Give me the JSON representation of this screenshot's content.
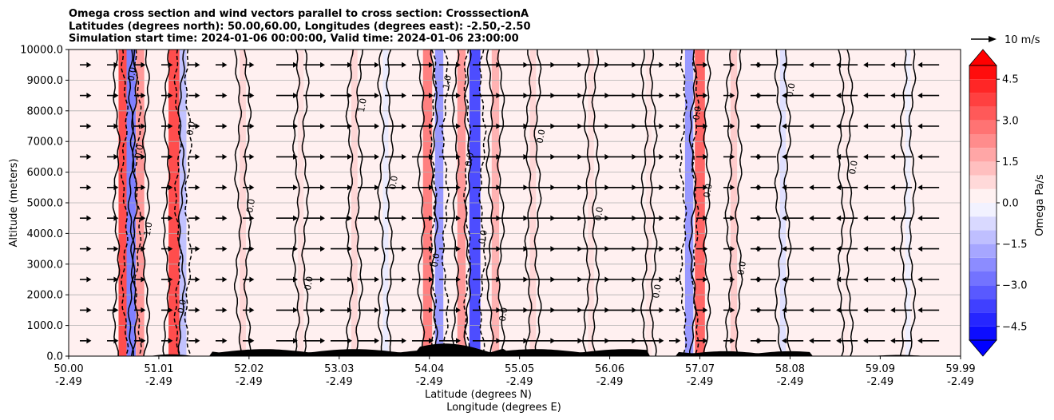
{
  "chart_data": {
    "type": "heatmap",
    "title_lines": [
      "Omega cross section and wind vectors parallel to cross section: CrosssectionA",
      "Latitudes (degrees north): 50.00,60.00, Longitudes (degrees east): -2.50,-2.50",
      "Simulation start time: 2024-01-06 00:00:00, Valid time: 2024-01-06 23:00:00"
    ],
    "ylabel": "Altitude (meters)",
    "xlabel_lines": [
      "Latitude (degrees N)",
      "Longitude (degrees E)"
    ],
    "y_ticks": [
      "0.0",
      "1000.0",
      "2000.0",
      "3000.0",
      "4000.0",
      "5000.0",
      "6000.0",
      "7000.0",
      "8000.0",
      "9000.0",
      "10000.0"
    ],
    "y_range": [
      0,
      10000
    ],
    "x_range": [
      50.0,
      59.99
    ],
    "x_tick_lat": [
      "50.00",
      "51.01",
      "52.02",
      "53.03",
      "54.04",
      "55.05",
      "56.06",
      "57.07",
      "58.08",
      "59.09",
      "59.99"
    ],
    "x_tick_lon": [
      "-2.49",
      "-2.49",
      "-2.49",
      "-2.49",
      "-2.49",
      "-2.49",
      "-2.49",
      "-2.49",
      "-2.49",
      "-2.49",
      "-2.49"
    ],
    "x_tick_values": [
      50.0,
      51.01,
      52.02,
      53.03,
      54.04,
      55.05,
      56.06,
      57.07,
      58.08,
      59.09,
      59.99
    ],
    "colorbar": {
      "label": "Omega Pa/s",
      "ticks": [
        "4.5",
        "3.0",
        "1.5",
        "0.0",
        "−1.5",
        "−3.0",
        "−4.5"
      ],
      "tick_values": [
        4.5,
        3.0,
        1.5,
        0.0,
        -1.5,
        -3.0,
        -4.5
      ],
      "range": [
        -5.0,
        5.0
      ],
      "levels": 20,
      "extend": "both",
      "cmap": "bwr"
    },
    "quiver_key": {
      "label": "10 m/s",
      "speed": 10
    },
    "vertical_bands": [
      {
        "lat": 50.62,
        "omega": 3.5
      },
      {
        "lat": 50.7,
        "omega": -2.5
      },
      {
        "lat": 50.8,
        "omega": 2.0
      },
      {
        "lat": 51.18,
        "omega": 3.5
      },
      {
        "lat": 51.28,
        "omega": -1.2
      },
      {
        "lat": 51.95,
        "omega": 0.8
      },
      {
        "lat": 52.6,
        "omega": 0.6
      },
      {
        "lat": 53.2,
        "omega": 0.8
      },
      {
        "lat": 53.55,
        "omega": -0.4
      },
      {
        "lat": 54.02,
        "omega": 2.5
      },
      {
        "lat": 54.15,
        "omega": -2.0
      },
      {
        "lat": 54.4,
        "omega": 2.0
      },
      {
        "lat": 54.55,
        "omega": -3.5
      },
      {
        "lat": 54.78,
        "omega": 1.5
      },
      {
        "lat": 55.2,
        "omega": 0.8
      },
      {
        "lat": 55.85,
        "omega": 0.6
      },
      {
        "lat": 56.5,
        "omega": 0.5
      },
      {
        "lat": 56.95,
        "omega": -2.0
      },
      {
        "lat": 57.07,
        "omega": 3.0
      },
      {
        "lat": 57.45,
        "omega": 1.0
      },
      {
        "lat": 58.0,
        "omega": -0.6
      },
      {
        "lat": 58.7,
        "omega": 0.4
      },
      {
        "lat": 59.4,
        "omega": -0.3
      }
    ],
    "wind_regions": [
      {
        "lat_from": 50.0,
        "lat_to": 52.2,
        "u": 2
      },
      {
        "lat_from": 52.2,
        "lat_to": 54.4,
        "u": 5
      },
      {
        "lat_from": 54.4,
        "lat_to": 56.6,
        "u": 7
      },
      {
        "lat_from": 56.6,
        "lat_to": 57.8,
        "u": 2
      },
      {
        "lat_from": 57.8,
        "lat_to": 59.99,
        "u": -5
      }
    ],
    "contour_labels": [
      "0.0",
      "0.0",
      "1.0",
      "0.0",
      "0.0",
      "0.0",
      "0.0",
      "1.0",
      "0.0",
      "0.0",
      "1.0",
      "0.0",
      "0.0",
      "0.0",
      "0.0",
      "0.0",
      "0.0",
      "0.0",
      "0.0",
      "0.0",
      "0.0",
      "0.0"
    ]
  }
}
